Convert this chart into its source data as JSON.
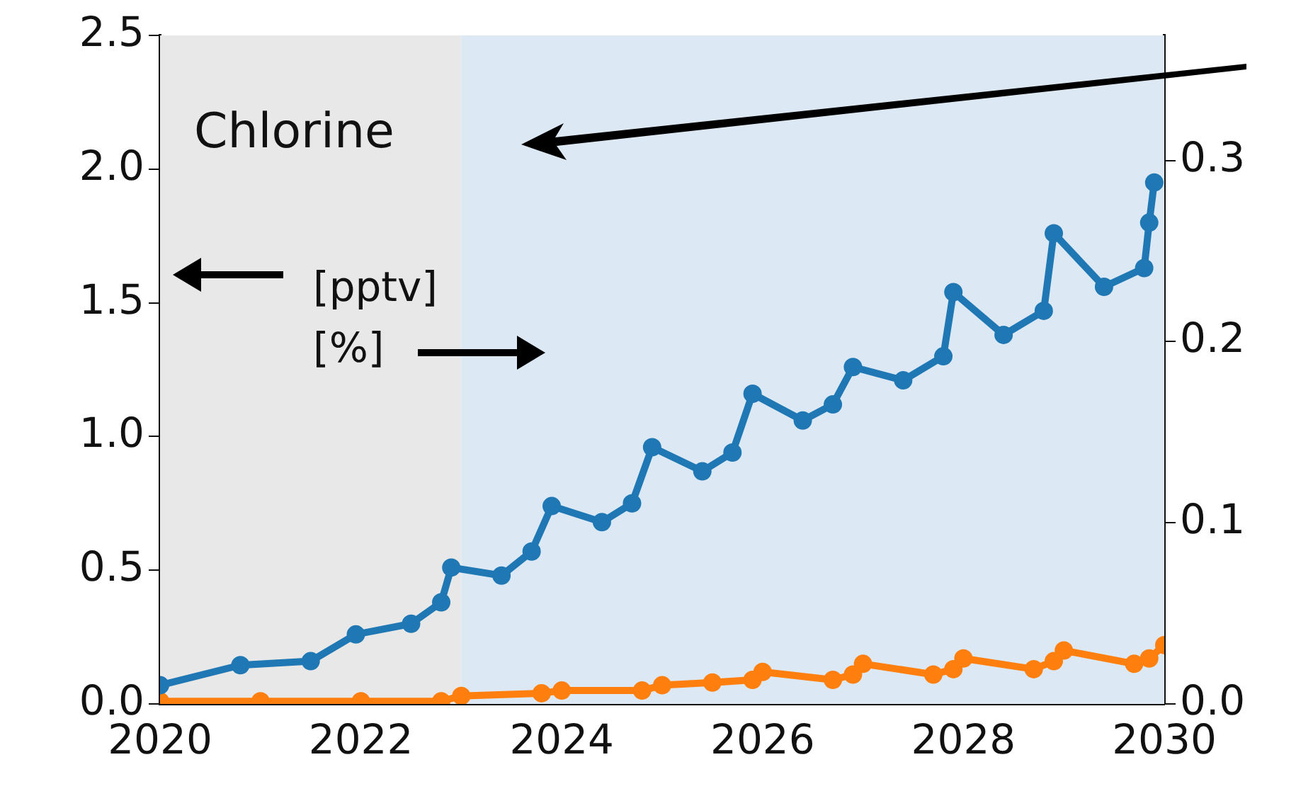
{
  "chart_data": {
    "type": "line",
    "x": [
      2020,
      2020.8,
      2021.5,
      2021.95,
      2022.5,
      2022.8,
      2022.9,
      2023.4,
      2023.7,
      2023.9,
      2024.4,
      2024.7,
      2024.9,
      2025.4,
      2025.7,
      2025.9,
      2026.4,
      2026.7,
      2026.9,
      2027.4,
      2027.8,
      2027.9,
      2028.4,
      2028.8,
      2028.9,
      2029.4,
      2029.8,
      2029.85,
      2029.9
    ],
    "series": [
      {
        "color": "#1f77b4",
        "values": [
          0.07,
          0.145,
          0.16,
          0.26,
          0.3,
          0.38,
          0.51,
          0.48,
          0.57,
          0.74,
          0.68,
          0.75,
          0.96,
          0.87,
          0.94,
          1.16,
          1.06,
          1.12,
          1.26,
          1.21,
          1.3,
          1.54,
          1.38,
          1.47,
          1.76,
          1.56,
          1.63,
          1.8,
          1.95
        ]
      },
      {
        "color": "#ff7f0e",
        "x": [
          2020,
          2021,
          2022,
          2022.8,
          2023,
          2023.8,
          2024,
          2024.8,
          2025,
          2025.5,
          2025.9,
          2026,
          2026.7,
          2026.9,
          2027,
          2027.7,
          2027.9,
          2028,
          2028.7,
          2028.9,
          2029,
          2029.7,
          2029.85,
          2030
        ],
        "values": [
          0.01,
          0.01,
          0.01,
          0.01,
          0.03,
          0.04,
          0.05,
          0.05,
          0.07,
          0.08,
          0.09,
          0.12,
          0.09,
          0.11,
          0.15,
          0.11,
          0.13,
          0.17,
          0.13,
          0.16,
          0.2,
          0.15,
          0.17,
          0.22
        ]
      }
    ],
    "xlim": [
      2020,
      2030
    ],
    "xticks": [
      2020,
      2022,
      2024,
      2026,
      2028,
      2030
    ],
    "ylim": [
      0,
      2.5
    ],
    "yticks": [
      {
        "value": 0,
        "label": "0.0"
      },
      0.5,
      {
        "value": 1,
        "label": "1.0"
      },
      1.5,
      {
        "value": 2,
        "label": "2.0"
      },
      2.5
    ],
    "y2lim": [
      0,
      0.369
    ],
    "y2ticks": [
      {
        "value": 0,
        "label": "0.0"
      },
      0.1,
      0.2,
      0.3
    ],
    "bands": [
      {
        "axis": "x",
        "from": 2020,
        "to": 2023,
        "color": "#e8e8e8"
      },
      {
        "axis": "x",
        "from": 2023,
        "to": 2030,
        "color": "#dce9f5"
      }
    ],
    "annotations": [
      "Chlorine",
      "[pptv]",
      "[%]"
    ],
    "marker": "circle",
    "line_style": "solid",
    "grid": false,
    "legend": false
  }
}
